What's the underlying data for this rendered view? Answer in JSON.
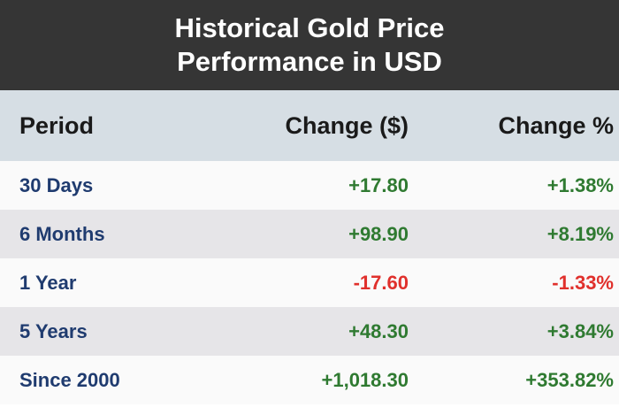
{
  "header": {
    "title": "Historical Gold Price Performance in USD"
  },
  "table": {
    "columns": [
      "Period",
      "Change ($)",
      "Change %"
    ],
    "rows": [
      [
        "30 Days",
        "+17.80",
        "+1.38%"
      ],
      [
        "6 Months",
        "+98.90",
        "+8.19%"
      ],
      [
        "1 Year",
        "-17.60",
        "-1.33%"
      ],
      [
        "5 Years",
        "+48.30",
        "+3.84%"
      ],
      [
        "Since 2000",
        "+1,018.30",
        "+353.82%"
      ]
    ]
  }
}
